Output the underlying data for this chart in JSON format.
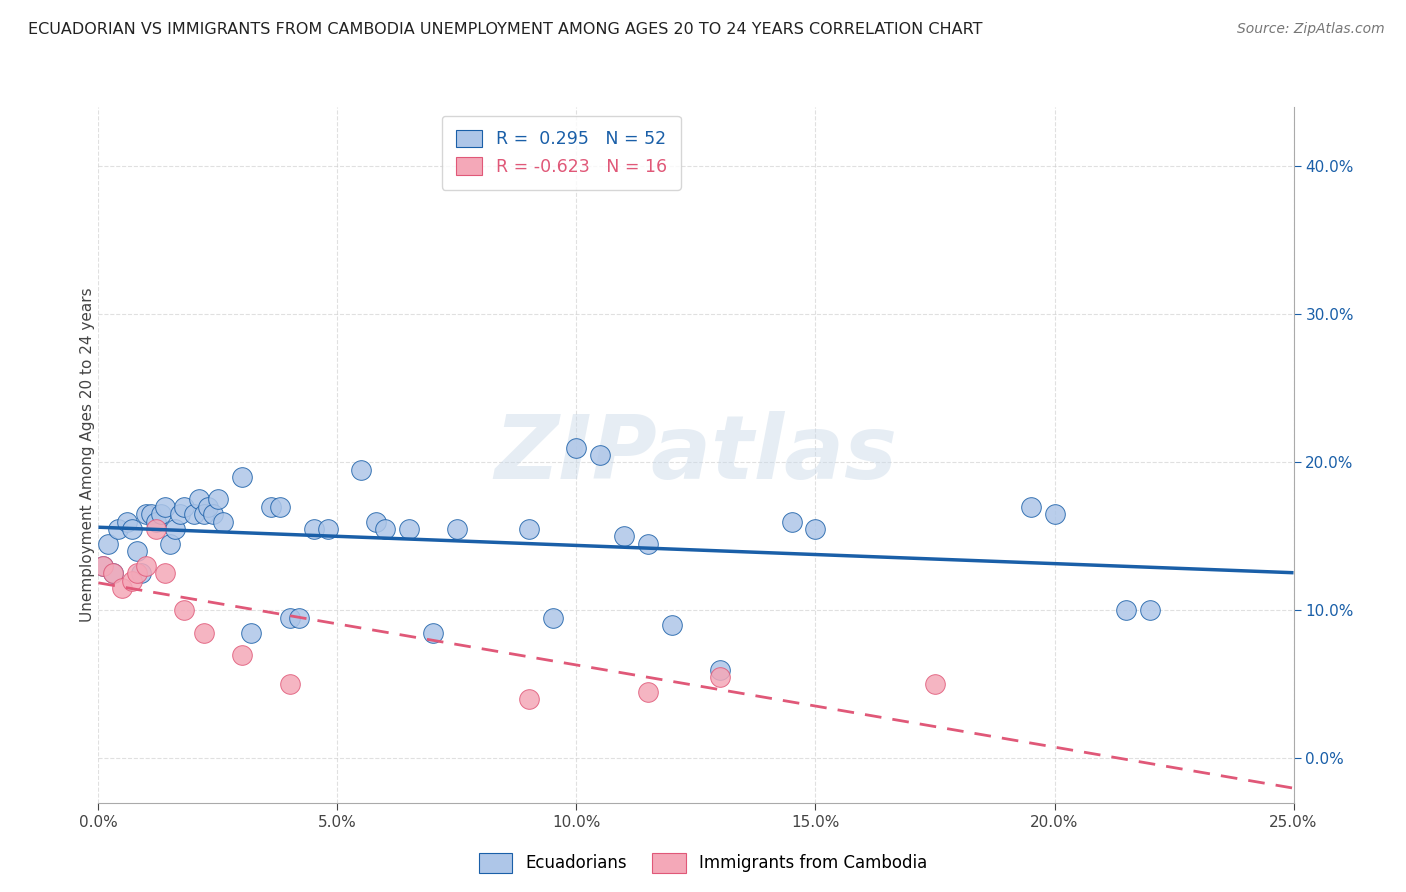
{
  "title": "ECUADORIAN VS IMMIGRANTS FROM CAMBODIA UNEMPLOYMENT AMONG AGES 20 TO 24 YEARS CORRELATION CHART",
  "source": "Source: ZipAtlas.com",
  "ylabel": "Unemployment Among Ages 20 to 24 years",
  "legend_label1": "Ecuadorians",
  "legend_label2": "Immigrants from Cambodia",
  "r1": "0.295",
  "n1": "52",
  "r2": "-0.623",
  "n2": "16",
  "xlim": [
    0.0,
    0.25
  ],
  "ylim": [
    -0.03,
    0.44
  ],
  "xticks": [
    0.0,
    0.05,
    0.1,
    0.15,
    0.2,
    0.25
  ],
  "yticks": [
    0.0,
    0.1,
    0.2,
    0.3,
    0.4
  ],
  "color_blue": "#aec6e8",
  "color_pink": "#f4a8b8",
  "line_blue": "#1a5fa8",
  "line_pink": "#e05878",
  "blue_x": [
    0.001,
    0.002,
    0.003,
    0.004,
    0.006,
    0.007,
    0.008,
    0.009,
    0.01,
    0.011,
    0.012,
    0.013,
    0.014,
    0.015,
    0.016,
    0.017,
    0.018,
    0.02,
    0.021,
    0.022,
    0.023,
    0.024,
    0.025,
    0.026,
    0.03,
    0.032,
    0.036,
    0.038,
    0.04,
    0.042,
    0.045,
    0.048,
    0.055,
    0.058,
    0.06,
    0.065,
    0.07,
    0.075,
    0.09,
    0.095,
    0.1,
    0.105,
    0.11,
    0.115,
    0.12,
    0.13,
    0.145,
    0.15,
    0.195,
    0.2,
    0.215,
    0.22
  ],
  "blue_y": [
    0.13,
    0.145,
    0.125,
    0.155,
    0.16,
    0.155,
    0.14,
    0.125,
    0.165,
    0.165,
    0.16,
    0.165,
    0.17,
    0.145,
    0.155,
    0.165,
    0.17,
    0.165,
    0.175,
    0.165,
    0.17,
    0.165,
    0.175,
    0.16,
    0.19,
    0.085,
    0.17,
    0.17,
    0.095,
    0.095,
    0.155,
    0.155,
    0.195,
    0.16,
    0.155,
    0.155,
    0.085,
    0.155,
    0.155,
    0.095,
    0.21,
    0.205,
    0.15,
    0.145,
    0.09,
    0.06,
    0.16,
    0.155,
    0.17,
    0.165,
    0.1,
    0.1
  ],
  "pink_x": [
    0.001,
    0.003,
    0.005,
    0.007,
    0.008,
    0.01,
    0.012,
    0.014,
    0.018,
    0.022,
    0.03,
    0.04,
    0.09,
    0.115,
    0.13,
    0.175
  ],
  "pink_y": [
    0.13,
    0.125,
    0.115,
    0.12,
    0.125,
    0.13,
    0.155,
    0.125,
    0.1,
    0.085,
    0.07,
    0.05,
    0.04,
    0.045,
    0.055,
    0.05
  ],
  "watermark_text": "ZIPatlas",
  "background_color": "#ffffff",
  "grid_color": "#cccccc",
  "title_color": "#222222",
  "source_color": "#777777"
}
